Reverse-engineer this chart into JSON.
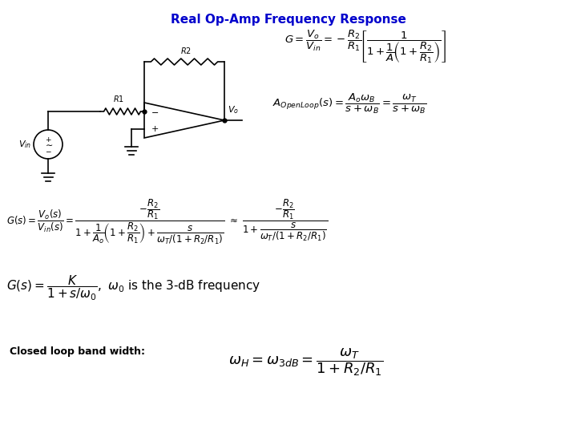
{
  "title": "Real Op-Amp Frequency Response",
  "title_color": "#0000CC",
  "title_fontsize": 11,
  "background_color": "#ffffff",
  "closed_loop_label": "Closed loop band width:",
  "fig_w": 7.2,
  "fig_h": 5.4,
  "dpi": 100
}
